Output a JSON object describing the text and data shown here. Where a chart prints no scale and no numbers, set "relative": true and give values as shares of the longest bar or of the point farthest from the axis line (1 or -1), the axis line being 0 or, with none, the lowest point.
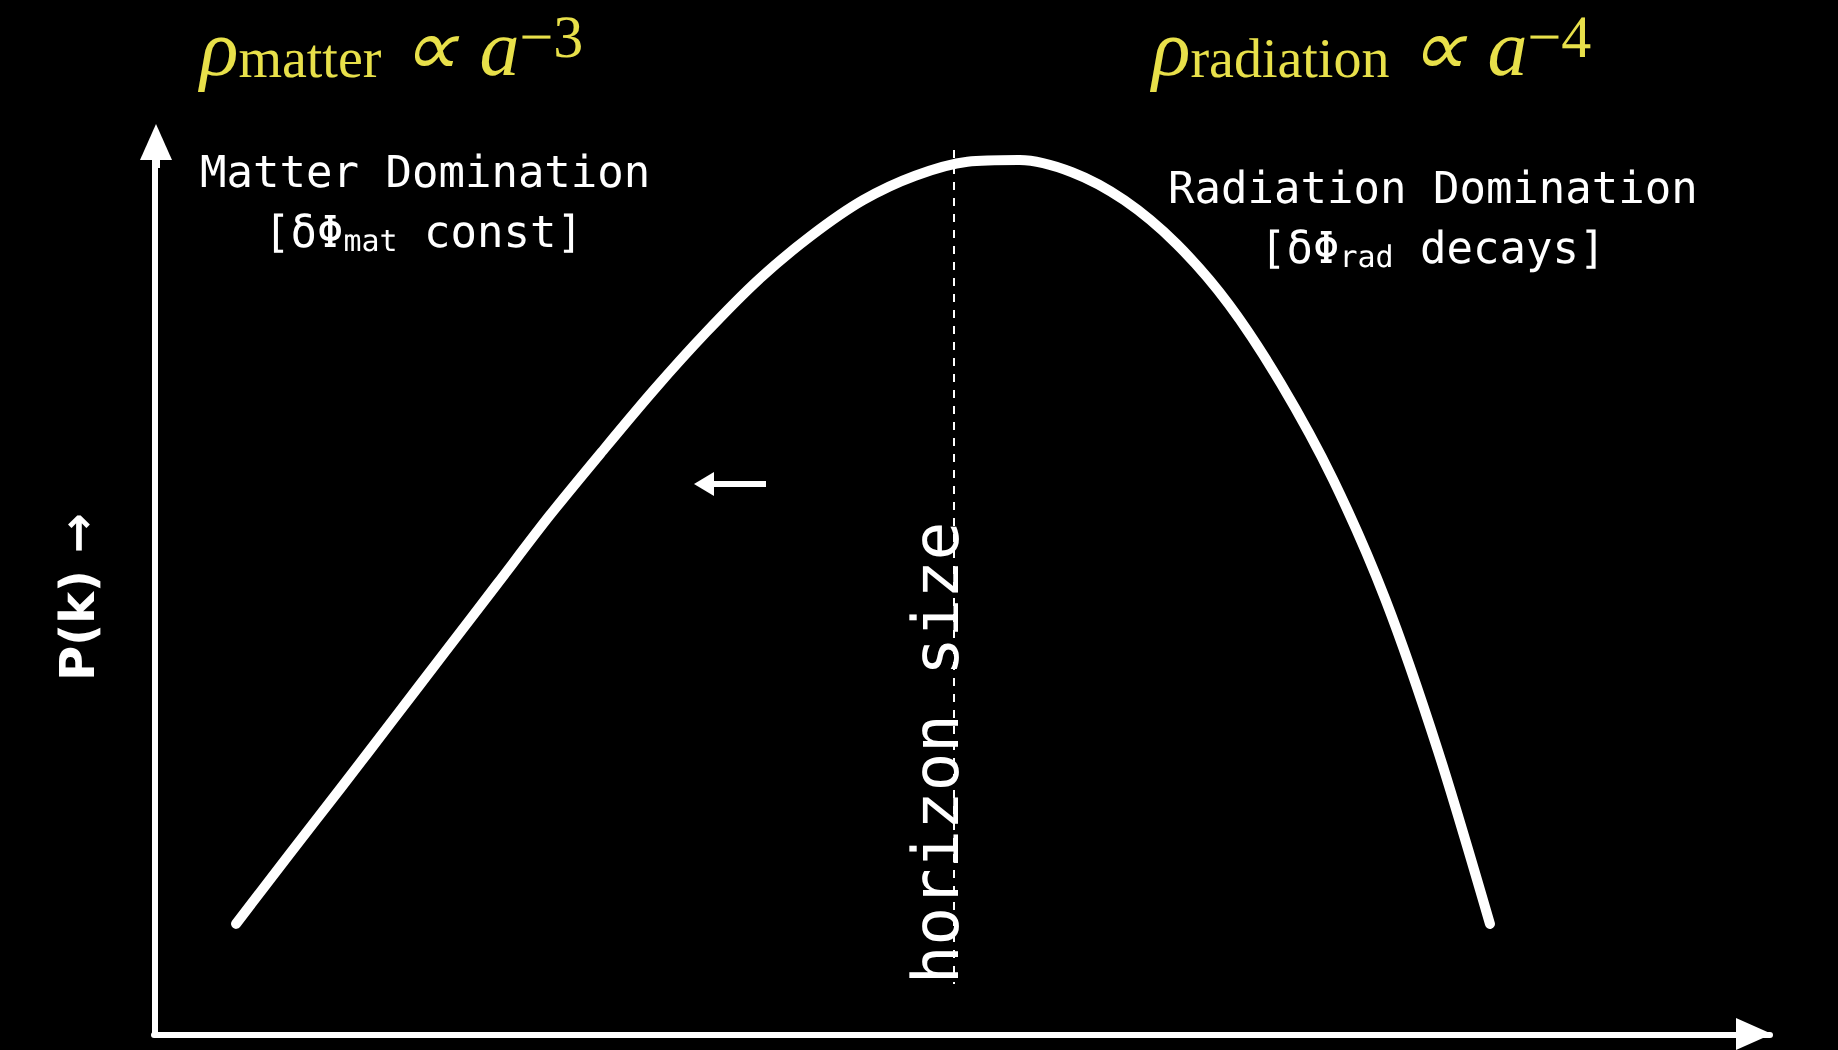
{
  "chart_data": {
    "type": "line",
    "relative": true,
    "ylabel": "P(k) →",
    "categories": [
      null,
      null,
      null,
      null,
      null,
      null,
      null,
      null,
      null,
      null,
      null,
      null,
      null,
      null,
      null,
      null,
      null,
      null,
      null,
      null,
      null,
      null,
      null,
      null,
      null
    ],
    "series": [
      {
        "color": "#ffffff",
        "values": [
          0.126,
          0.204,
          0.281,
          0.359,
          0.437,
          0.515,
          0.593,
          0.666,
          0.737,
          0.803,
          0.863,
          0.913,
          0.954,
          0.982,
          0.998,
          1,
          0.986,
          0.954,
          0.904,
          0.835,
          0.744,
          0.634,
          0.497,
          0.325,
          0.126
        ]
      }
    ],
    "annotations": [
      "ρ$_{matter}$ ∝ a$^{−3}$",
      "Matter Domination",
      "[δΦ$_{mat}$ const]",
      "ρ$_{radiation}$ ∝ a$^{−4}$",
      "Radiation Domination",
      "[δΦ$_{rad}$ decays]",
      "horizon size"
    ],
    "grid": false,
    "marker": "none",
    "line_style": "solid"
  }
}
